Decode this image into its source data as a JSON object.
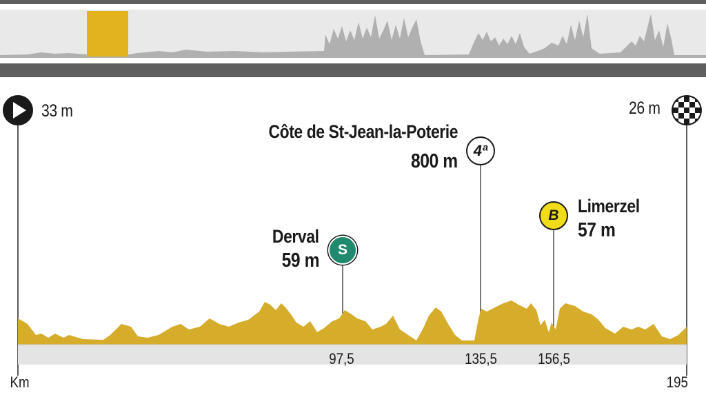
{
  "start": {
    "altitude": "33 m"
  },
  "finish": {
    "altitude": "26 m"
  },
  "axis": {
    "unit_label": "Km",
    "end_km": "195"
  },
  "markers": [
    {
      "name": "Côte de St-Jean-la-Poterie",
      "value": "800 m",
      "badge": "4ª",
      "km": "135,5"
    },
    {
      "name": "Derval",
      "value": "59 m",
      "badge": "S",
      "km": "97,5"
    },
    {
      "name": "Limerzel",
      "value": "57 m",
      "badge": "B",
      "km": "156,5"
    }
  ],
  "colors": {
    "profile_fill": "#d6ac2b",
    "overview_band": "#5f5f5f",
    "overview_profile": "#b0b0b0",
    "overview_highlight": "#e2b21f",
    "sprint_badge": "#1f8a6e",
    "bonus_badge": "#f0dc18"
  }
}
